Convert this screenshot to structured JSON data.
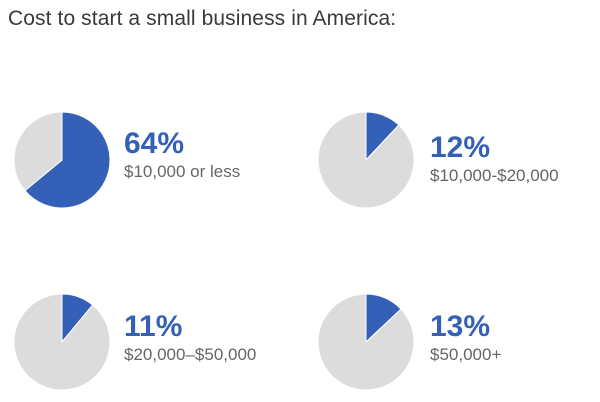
{
  "title": "Cost to start a small business in America:",
  "colors": {
    "accent": "#3560b8",
    "remainder": "#dcdcdc",
    "range_text": "#666666"
  },
  "chart_data": [
    {
      "type": "pie",
      "title": "",
      "value_label": "64%",
      "category_label": "$10,000 or less",
      "slices": [
        {
          "label": "$10,000 or less",
          "value": 64
        },
        {
          "label": "",
          "value": 36
        }
      ]
    },
    {
      "type": "pie",
      "title": "",
      "value_label": "12%",
      "category_label": "$10,000-$20,000",
      "slices": [
        {
          "label": "$10,000-$20,000",
          "value": 12
        },
        {
          "label": "",
          "value": 88
        }
      ]
    },
    {
      "type": "pie",
      "title": "",
      "value_label": "11%",
      "category_label": "$20,000–$50,000",
      "slices": [
        {
          "label": "$20,000–$50,000",
          "value": 11
        },
        {
          "label": "",
          "value": 89
        }
      ]
    },
    {
      "type": "pie",
      "title": "",
      "value_label": "13%",
      "category_label": "$50,000+",
      "slices": [
        {
          "label": "$50,000+",
          "value": 13
        },
        {
          "label": "",
          "value": 87
        }
      ]
    }
  ]
}
